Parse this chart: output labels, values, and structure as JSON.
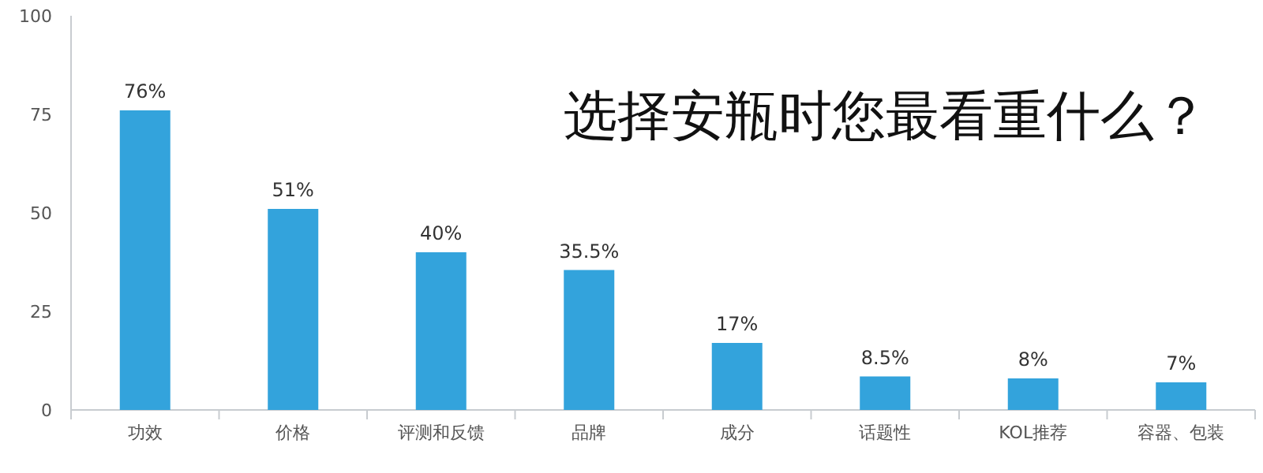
{
  "chart_data": {
    "type": "bar",
    "title": "选择安瓶时您最看重什么？",
    "categories": [
      "功效",
      "价格",
      "评测和反馈",
      "品牌",
      "成分",
      "话题性",
      "KOL推荐",
      "容器、包装"
    ],
    "values": [
      76,
      51,
      40,
      35.5,
      17,
      8.5,
      8,
      7
    ],
    "value_labels": [
      "76%",
      "51%",
      "40%",
      "35.5%",
      "17%",
      "8.5%",
      "8%",
      "7%"
    ],
    "color": "#33a3dc",
    "ylim": [
      0,
      100
    ],
    "yticks": [
      0,
      25,
      50,
      75,
      100
    ]
  }
}
